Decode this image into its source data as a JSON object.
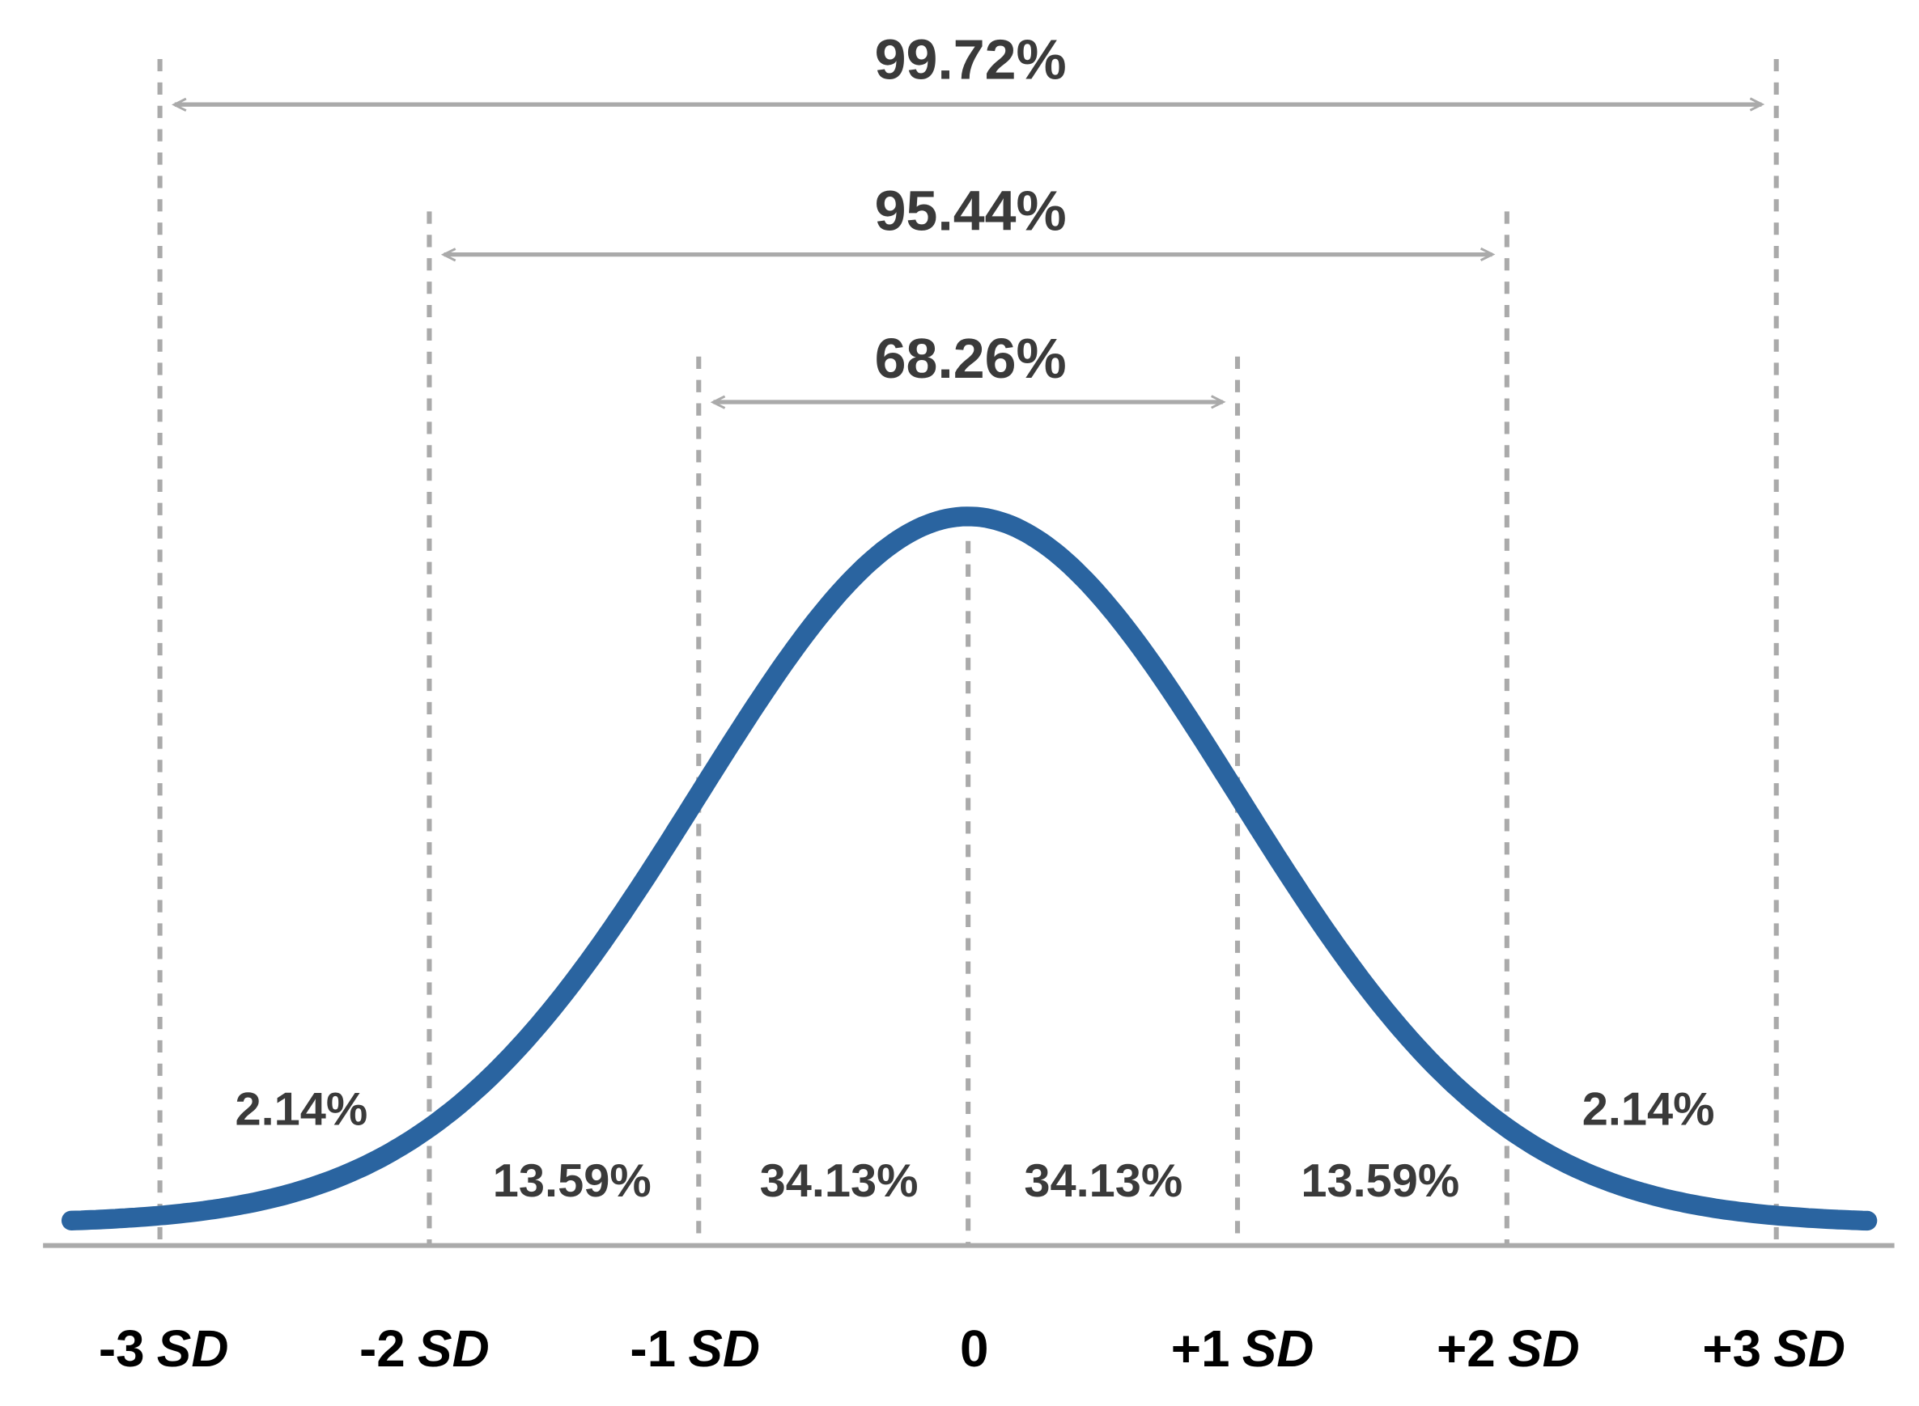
{
  "spans": [
    {
      "label": "99.72%"
    },
    {
      "label": "95.44%"
    },
    {
      "label": "68.26%"
    }
  ],
  "segments": [
    "2.14%",
    "13.59%",
    "34.13%",
    "34.13%",
    "13.59%",
    "2.14%"
  ],
  "axis_labels": [
    {
      "text": "-3",
      "unit": "SD"
    },
    {
      "text": "-2",
      "unit": "SD"
    },
    {
      "text": "-1",
      "unit": "SD"
    },
    {
      "text": "0"
    },
    {
      "text": "+1",
      "unit": "SD"
    },
    {
      "text": "+2",
      "unit": "SD"
    },
    {
      "text": "+3",
      "unit": "SD"
    }
  ]
}
